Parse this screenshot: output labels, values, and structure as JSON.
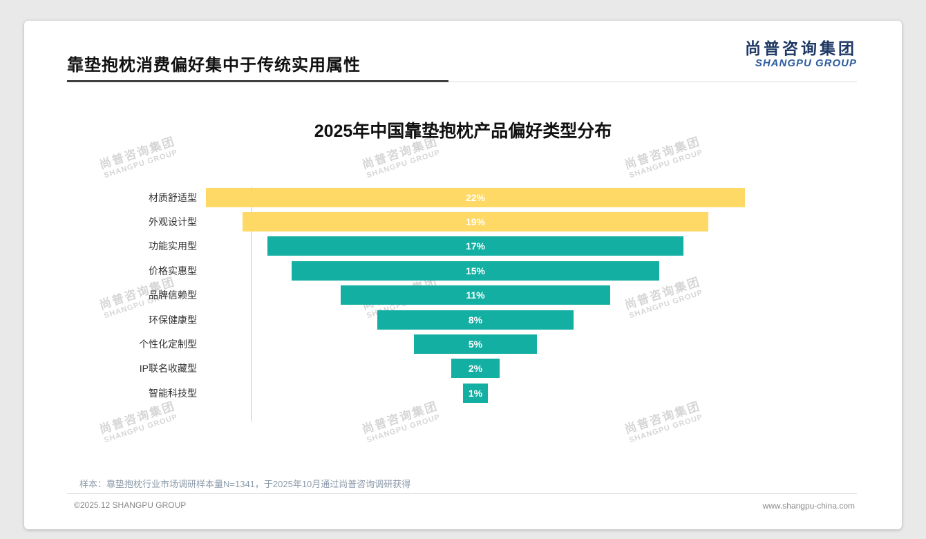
{
  "header": {
    "title": "靠垫抱枕消费偏好集中于传统实用属性",
    "logo_cn": "尚普咨询集团",
    "logo_en": "SHANGPU GROUP"
  },
  "watermark": {
    "line1": "尚普咨询集团",
    "line2": "SHANGPU GROUP"
  },
  "chart_data": {
    "type": "bar",
    "title": "2025年中国靠垫抱枕产品偏好类型分布",
    "orientation": "horizontal-centered-funnel",
    "categories": [
      "材质舒适型",
      "外观设计型",
      "功能实用型",
      "价格实惠型",
      "品牌信赖型",
      "环保健康型",
      "个性化定制型",
      "IP联名收藏型",
      "智能科技型"
    ],
    "values": [
      22,
      19,
      17,
      15,
      11,
      8,
      5,
      2,
      1
    ],
    "value_labels": [
      "22%",
      "19%",
      "17%",
      "15%",
      "11%",
      "8%",
      "5%",
      "2%",
      "1%"
    ],
    "colors": [
      "#FFD966",
      "#FFD966",
      "#14AFA3",
      "#14AFA3",
      "#14AFA3",
      "#14AFA3",
      "#14AFA3",
      "#14AFA3",
      "#14AFA3"
    ],
    "xlim": [
      0,
      22
    ],
    "grid": false,
    "legend": false,
    "value_label_color": "#ffffff"
  },
  "footer": {
    "note": "样本：靠垫抱枕行业市场调研样本量N=1341，于2025年10月通过尚普咨询调研获得",
    "copyright": "©2025.12 SHANGPU GROUP",
    "website": "www.shangpu-china.com"
  }
}
